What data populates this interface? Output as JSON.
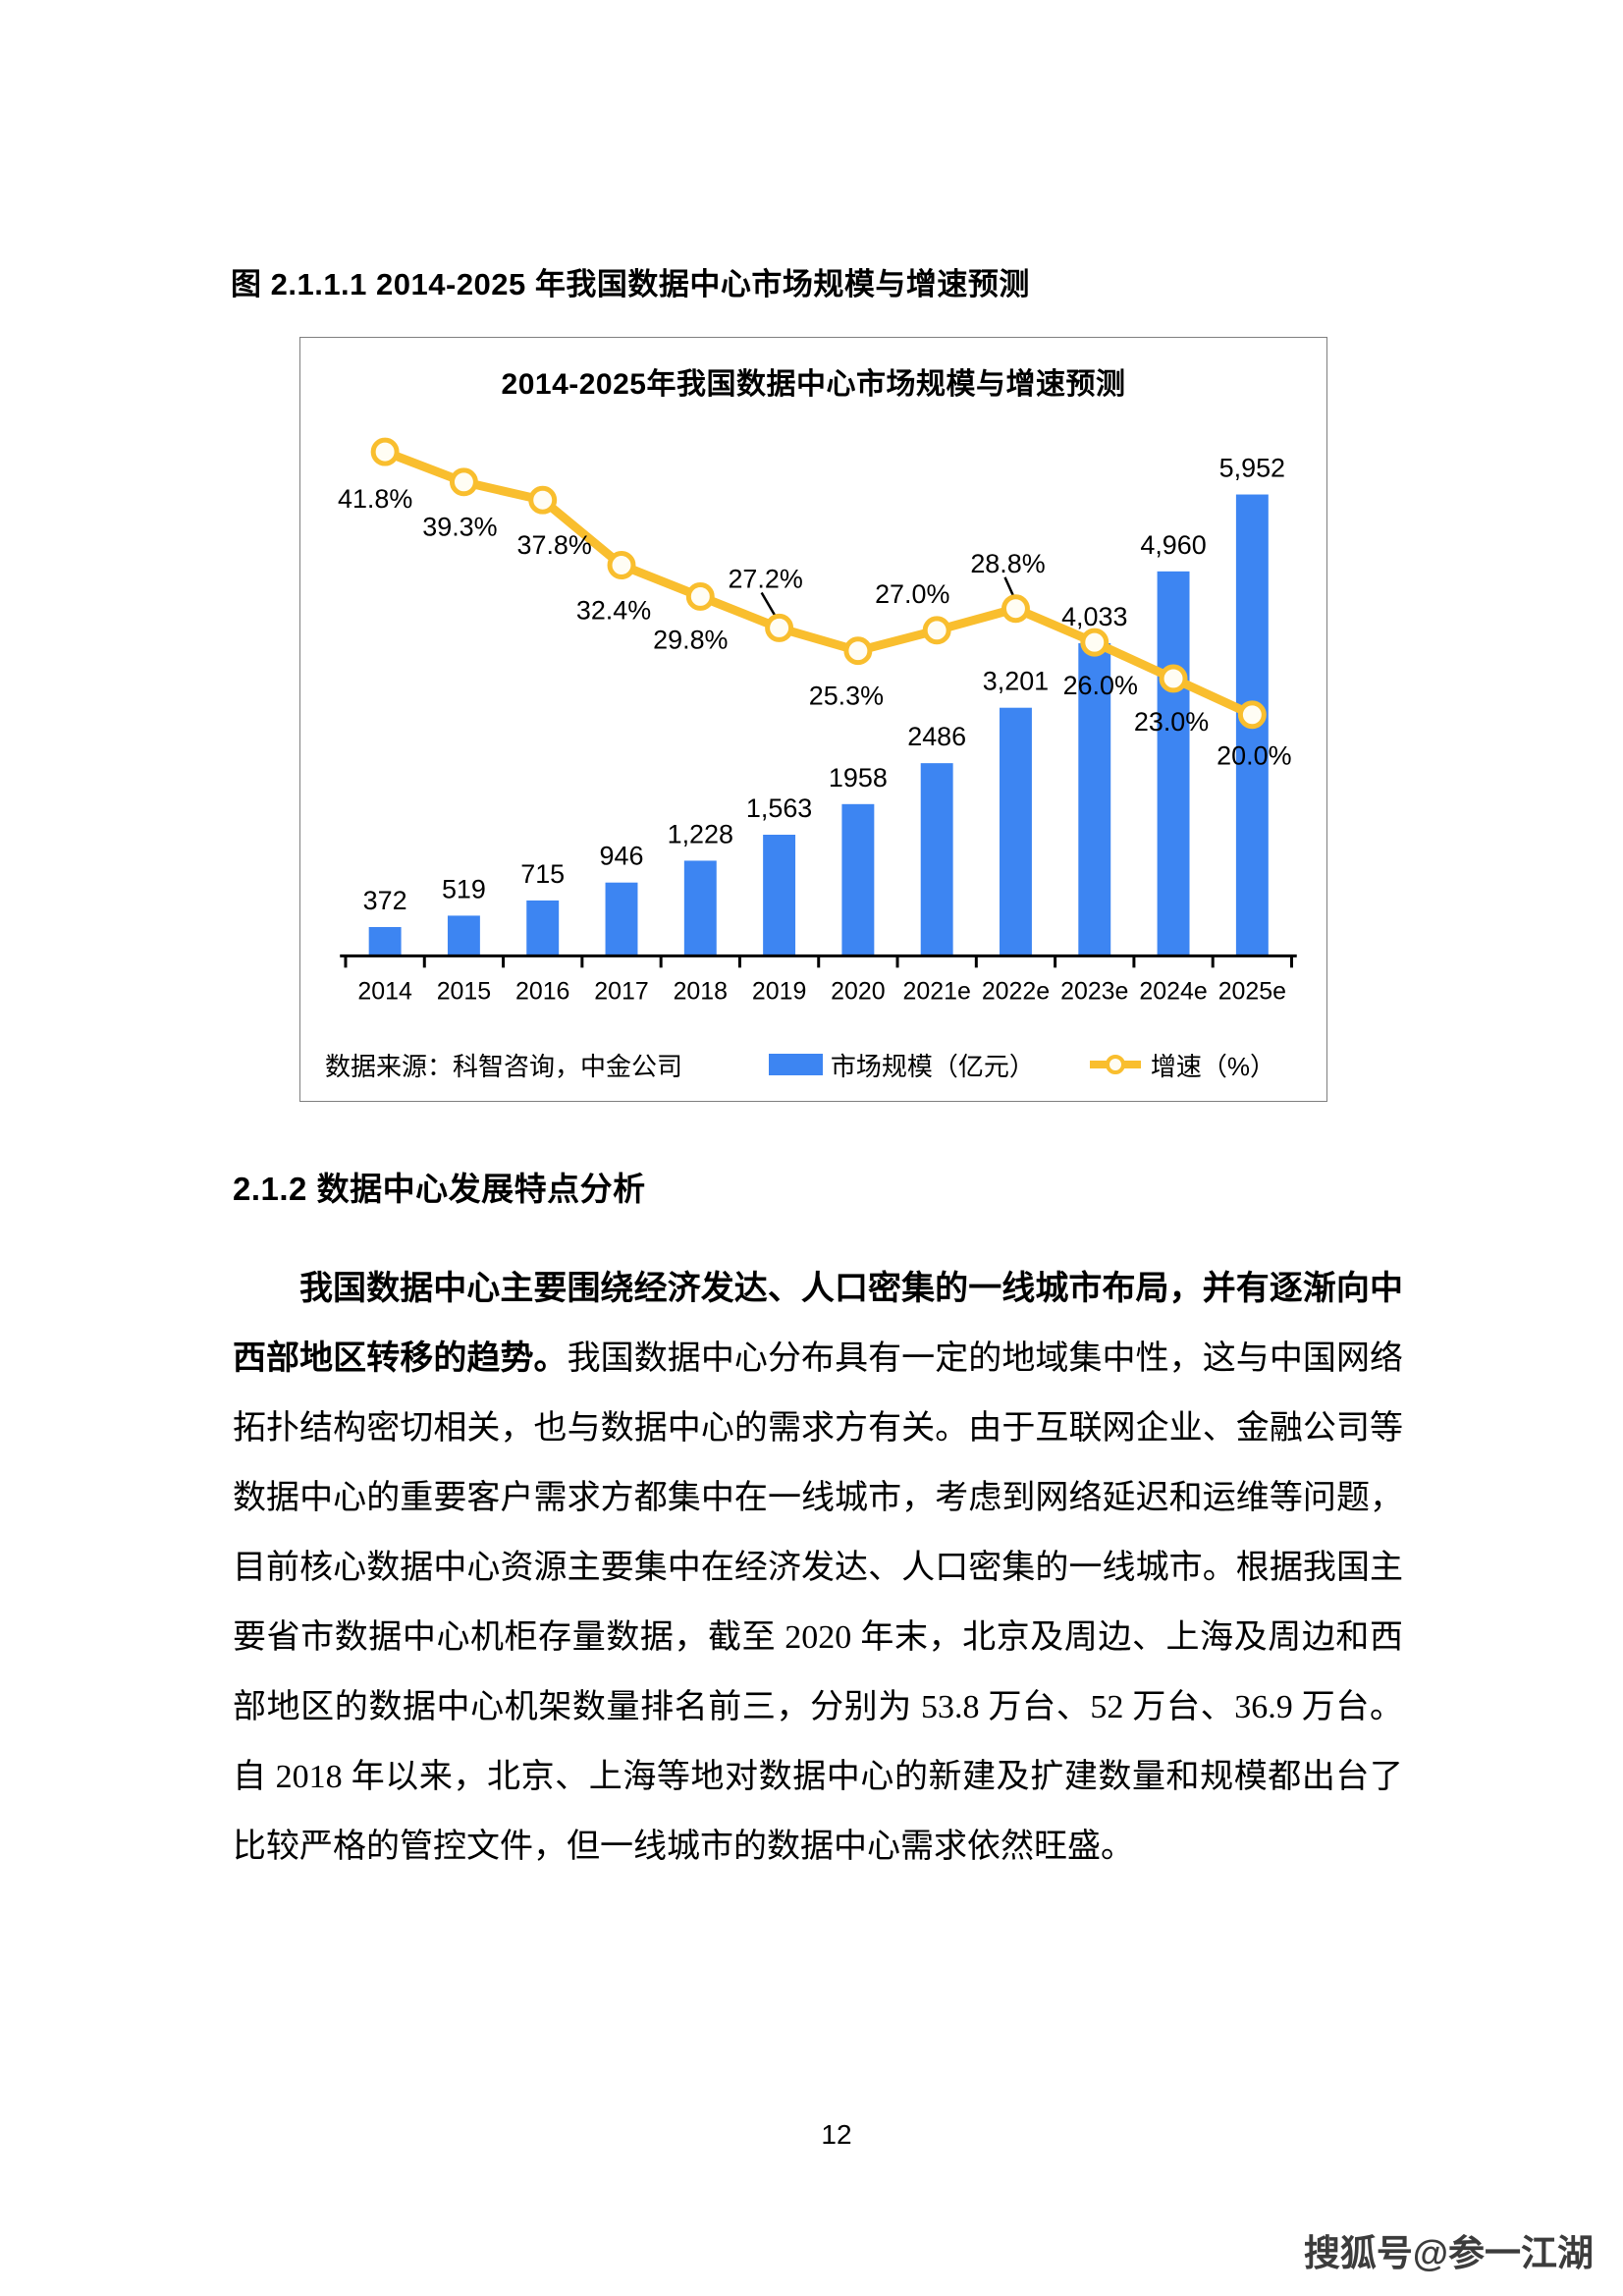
{
  "figure_caption": "图 2.1.1.1 2014-2025 年我国数据中心市场规模与增速预测",
  "chart_data": {
    "type": "bar",
    "combo": "bar+line",
    "title": "2014-2025年我国数据中心市场规模与增速预测",
    "categories": [
      "2014",
      "2015",
      "2016",
      "2017",
      "2018",
      "2019",
      "2020",
      "2021e",
      "2022e",
      "2023e",
      "2024e",
      "2025e"
    ],
    "series": [
      {
        "name": "市场规模（亿元）",
        "chart_type": "bar",
        "color": "#3d85f2",
        "values": [
          372,
          519,
          715,
          946,
          1228,
          1563,
          1958,
          2486,
          3201,
          4033,
          4960,
          5952
        ],
        "labels": [
          "372",
          "519",
          "715",
          "946",
          "1,228",
          "1,563",
          "1958",
          "2486",
          "3,201",
          "4,033",
          "4,960",
          "5,952"
        ]
      },
      {
        "name": "增速（%）",
        "chart_type": "line",
        "color": "#f9be2e",
        "marker_fill": "#fffdf4",
        "values": [
          41.8,
          39.3,
          37.8,
          32.4,
          29.8,
          27.2,
          25.3,
          27.0,
          28.8,
          26.0,
          23.0,
          20.0
        ],
        "labels": [
          "41.8%",
          "39.3%",
          "37.8%",
          "32.4%",
          "29.8%",
          "27.2%",
          "25.3%",
          "27.0%",
          "28.8%",
          "26.0%",
          "23.0%",
          "20.0%"
        ]
      }
    ],
    "left_axis": {
      "min": 0,
      "max": 7000,
      "tick_labels_visible": false
    },
    "right_axis": {
      "min": 0,
      "max": 45,
      "unit": "%",
      "tick_labels_visible": false
    },
    "grid": false,
    "legend_position": "bottom-right",
    "source_note": "数据来源：科智咨询，中金公司"
  },
  "section_heading": "2.1.2 数据中心发展特点分析",
  "paragraph": {
    "bold_lead": "我国数据中心主要围绕经济发达、人口密集的一线城市布局，并有逐渐向中西部地区转移的趋势。",
    "rest": "我国数据中心分布具有一定的地域集中性，这与中国网络拓扑结构密切相关，也与数据中心的需求方有关。由于互联网企业、金融公司等数据中心的重要客户需求方都集中在一线城市，考虑到网络延迟和运维等问题，目前核心数据中心资源主要集中在经济发达、人口密集的一线城市。根据我国主要省市数据中心机柜存量数据，截至 2020 年末，北京及周边、上海及周边和西部地区的数据中心机架数量排名前三，分别为 53.8 万台、52 万台、36.9 万台。自 2018 年以来，北京、上海等地对数据中心的新建及扩建数量和规模都出台了比较严格的管控文件，但一线城市的数据中心需求依然旺盛。"
  },
  "page_number": "12",
  "watermark": "搜狐号@参一江湖"
}
